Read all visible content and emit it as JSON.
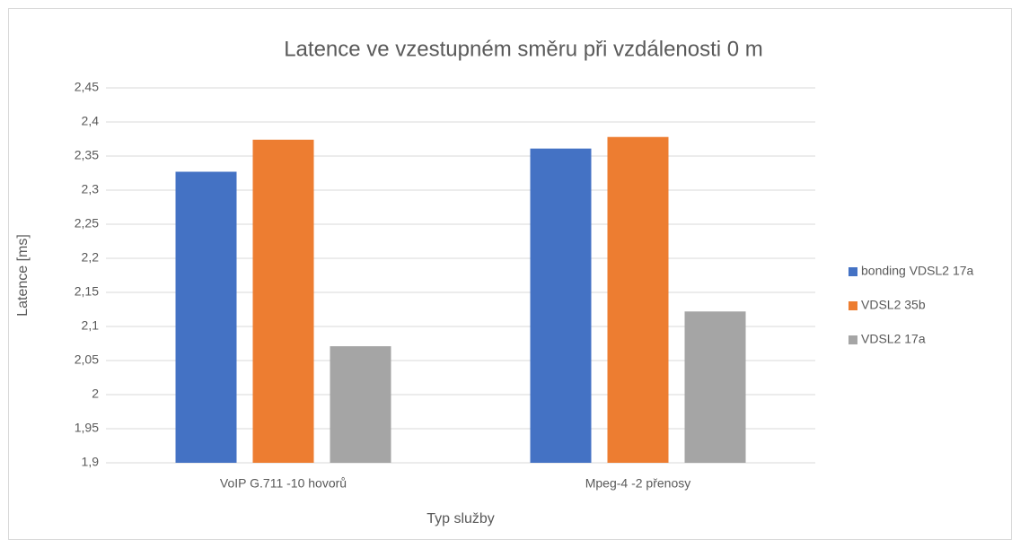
{
  "chart_data": {
    "type": "bar",
    "title": "Latence ve vzestupném směru při vzdálenosti 0 m",
    "x_label": "Typ služby",
    "y_label": "Latence [ms]",
    "categories": [
      "VoIP G.711 -10 hovorů",
      "Mpeg-4 -2 přenosy"
    ],
    "series": [
      {
        "name": "bonding VDSL2 17a",
        "color": "#4472c4",
        "values": [
          2.327,
          2.361
        ]
      },
      {
        "name": "VDSL2 35b",
        "color": "#ed7d31",
        "values": [
          2.374,
          2.378
        ]
      },
      {
        "name": "VDSL2 17a",
        "color": "#a5a5a5",
        "values": [
          2.071,
          2.122
        ]
      }
    ],
    "ylim": [
      1.9,
      2.45
    ],
    "yticks": [
      {
        "value": 1.9,
        "label": "1,9"
      },
      {
        "value": 1.95,
        "label": "1,95"
      },
      2,
      {
        "value": 2.05,
        "label": "2,05"
      },
      {
        "value": 2.1,
        "label": "2,1"
      },
      {
        "value": 2.15,
        "label": "2,15"
      },
      {
        "value": 2.2,
        "label": "2,2"
      },
      {
        "value": 2.25,
        "label": "2,25"
      },
      {
        "value": 2.3,
        "label": "2,3"
      },
      {
        "value": 2.35,
        "label": "2,35"
      },
      {
        "value": 2.4,
        "label": "2,4"
      },
      {
        "value": 2.45,
        "label": "2,45"
      }
    ],
    "grid": true,
    "legend": "right"
  }
}
